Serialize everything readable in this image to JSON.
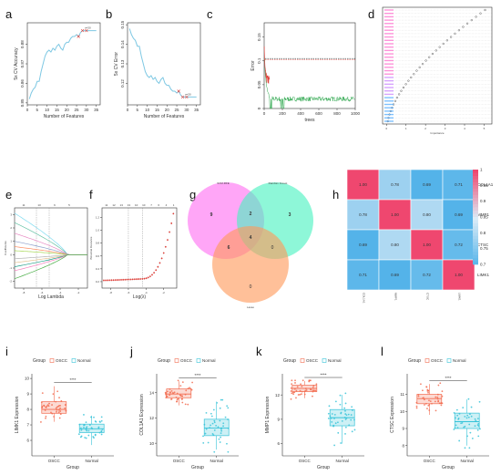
{
  "panel_letters": [
    "a",
    "b",
    "c",
    "d",
    "e",
    "f",
    "g",
    "h",
    "i",
    "j",
    "k",
    "l"
  ],
  "chart_data": [
    {
      "panel": "a",
      "type": "line",
      "xlabel": "Number of Features",
      "ylabel": "5x CV Accuracy",
      "xticks": [
        0,
        5,
        10,
        15,
        20,
        25,
        30,
        35
      ],
      "yticks": [
        0.85,
        0.86,
        0.87,
        0.88
      ],
      "xlim": [
        0,
        37
      ],
      "ylim": [
        0.849,
        0.891
      ],
      "x": [
        1,
        2,
        3,
        4,
        5,
        6,
        7,
        8,
        9,
        10,
        11,
        12,
        13,
        14,
        15,
        16,
        17,
        18,
        19,
        20,
        21,
        22,
        23,
        24,
        25,
        26,
        27,
        28,
        29,
        30,
        31,
        32,
        33,
        34,
        35
      ],
      "values": [
        0.852,
        0.855,
        0.857,
        0.858,
        0.861,
        0.861,
        0.866,
        0.87,
        0.874,
        0.876,
        0.877,
        0.876,
        0.878,
        0.877,
        0.879,
        0.88,
        0.878,
        0.877,
        0.88,
        0.881,
        0.881,
        0.883,
        0.884,
        0.884,
        0.885,
        0.884,
        0.886,
        0.887,
        0.887,
        0.887,
        0.887,
        0.887,
        0.887,
        0.887,
        0.887
      ],
      "annotation": "n=30"
    },
    {
      "panel": "b",
      "type": "line",
      "xlabel": "Number of Features",
      "ylabel": "5x CV Error",
      "xticks": [
        0,
        5,
        10,
        15,
        20,
        25,
        30,
        35
      ],
      "yticks": [
        0.12,
        0.13,
        0.14,
        0.15
      ],
      "xlim": [
        0,
        37
      ],
      "ylim": [
        0.109,
        0.151
      ],
      "x": [
        1,
        2,
        3,
        4,
        5,
        6,
        7,
        8,
        9,
        10,
        11,
        12,
        13,
        14,
        15,
        16,
        17,
        18,
        19,
        20,
        21,
        22,
        23,
        24,
        25,
        26,
        27,
        28,
        29,
        30,
        31,
        32,
        33,
        34,
        35
      ],
      "values": [
        0.148,
        0.145,
        0.143,
        0.142,
        0.139,
        0.139,
        0.134,
        0.13,
        0.126,
        0.124,
        0.123,
        0.124,
        0.122,
        0.123,
        0.121,
        0.12,
        0.122,
        0.123,
        0.12,
        0.119,
        0.119,
        0.117,
        0.116,
        0.116,
        0.115,
        0.116,
        0.114,
        0.113,
        0.113,
        0.113,
        0.113,
        0.113,
        0.113,
        0.113,
        0.113
      ],
      "annotation": "n=30"
    },
    {
      "panel": "c",
      "type": "line",
      "xlabel": "trees",
      "ylabel": "Error",
      "xticks": [
        0,
        200,
        400,
        600,
        800,
        1000
      ],
      "yticks": [
        0.0,
        0.05,
        0.1,
        0.15
      ],
      "xlim": [
        0,
        1000
      ],
      "ylim": [
        0,
        0.18
      ]
    },
    {
      "panel": "d",
      "type": "scatter",
      "xlabel": "Importance",
      "xticks": [
        0,
        1,
        2,
        3,
        4,
        5
      ]
    },
    {
      "panel": "e",
      "type": "line",
      "xlabel": "Log Lambda",
      "ylabel": "Coefficients",
      "top_ticks": [
        "11",
        "13",
        "6",
        "5"
      ],
      "xticks": [
        "-8",
        "-6",
        "-4",
        "-2"
      ],
      "yticks": [
        "-2",
        "-1",
        "0",
        "1",
        "2",
        "3"
      ]
    },
    {
      "panel": "f",
      "type": "line",
      "xlabel": "Log(λ)",
      "ylabel": "Binomial Deviance",
      "top_ticks": [
        "11",
        "12",
        "13",
        "13",
        "10",
        "10",
        "7",
        "6",
        "4",
        "1"
      ],
      "xticks": [
        "-8",
        "-6",
        "-4",
        "-2"
      ],
      "yticks": [
        "0.2",
        "0.4",
        "0.6",
        "0.8",
        "1.0",
        "1.2"
      ]
    },
    {
      "panel": "g",
      "type": "venn",
      "sets": [
        "SVM-RFE",
        "Random Forest",
        "Lasso"
      ],
      "regions": {
        "a_only": "9",
        "b_only": "3",
        "c_only": "0",
        "ab": "2",
        "ac": "6",
        "bc": "0",
        "abc": "4"
      }
    },
    {
      "panel": "h",
      "type": "heatmap",
      "row_labels": [
        "COL1A1",
        "MMP1",
        "CTSC",
        "LIMK1"
      ],
      "col_labels": [
        "COL1A1",
        "MMP1",
        "CTSC",
        "LIMK1"
      ],
      "matrix": [
        [
          1.0,
          0.78,
          0.69,
          0.71
        ],
        [
          0.78,
          1.0,
          0.8,
          0.69
        ],
        [
          0.69,
          0.8,
          1.0,
          0.72
        ],
        [
          0.71,
          0.69,
          0.72,
          1.0
        ]
      ],
      "colorbar_ticks": [
        "1",
        "0.95",
        "0.9",
        "0.85",
        "0.8",
        "0.75",
        "0.7"
      ],
      "colorbar_range": [
        0.7,
        1.0
      ]
    },
    {
      "panel": "i",
      "type": "boxplot",
      "legend_title": "Group",
      "categories": [
        "OSCC",
        "Normal"
      ],
      "xlabel": "Group",
      "ylabel": "LIMK1 Expression",
      "yticks": [
        6,
        7,
        8,
        9,
        10
      ],
      "ylim": [
        5.0,
        10.3
      ],
      "significance": "****",
      "boxes": [
        {
          "min": 7.2,
          "q1": 7.75,
          "median": 8.0,
          "q3": 8.5,
          "max": 9.5
        },
        {
          "min": 5.7,
          "q1": 6.5,
          "median": 6.75,
          "q3": 7.05,
          "max": 7.6
        }
      ]
    },
    {
      "panel": "j",
      "type": "boxplot",
      "legend_title": "Group",
      "categories": [
        "OSCC",
        "Normal"
      ],
      "xlabel": "Group",
      "ylabel": "COL1A1 Expression",
      "yticks": [
        10,
        12,
        14
      ],
      "ylim": [
        9.0,
        15.5
      ],
      "significance": "****",
      "boxes": [
        {
          "min": 13.0,
          "q1": 13.6,
          "median": 13.9,
          "q3": 14.3,
          "max": 14.9
        },
        {
          "min": 9.5,
          "q1": 10.6,
          "median": 11.2,
          "q3": 11.9,
          "max": 13.3
        }
      ]
    },
    {
      "panel": "k",
      "type": "boxplot",
      "legend_title": "Group",
      "categories": [
        "OSCC",
        "Normal"
      ],
      "xlabel": "Group",
      "ylabel": "MMP1 Expression",
      "yticks": [
        6,
        9,
        12
      ],
      "ylim": [
        4.5,
        14.6
      ],
      "significance": "****",
      "boxes": [
        {
          "min": 11.6,
          "q1": 12.4,
          "median": 12.8,
          "q3": 13.2,
          "max": 13.7
        },
        {
          "min": 6.0,
          "q1": 8.2,
          "median": 9.2,
          "q3": 10.2,
          "max": 12.0
        }
      ]
    },
    {
      "panel": "l",
      "type": "boxplot",
      "legend_title": "Group",
      "categories": [
        "OSCC",
        "Normal"
      ],
      "xlabel": "Group",
      "ylabel": "CTSC Expression",
      "yticks": [
        8,
        9,
        10,
        11
      ],
      "ylim": [
        7.4,
        12.2
      ],
      "significance": "****",
      "boxes": [
        {
          "min": 9.8,
          "q1": 10.45,
          "median": 10.75,
          "q3": 11.0,
          "max": 11.6
        },
        {
          "min": 8.0,
          "q1": 9.0,
          "median": 9.4,
          "q3": 9.9,
          "max": 10.7
        }
      ]
    }
  ],
  "colors": {
    "line_blue": "#7ec8e3",
    "point_red": "#e0403a",
    "oscc": "#f26b4f",
    "normal": "#36c3d8",
    "venn_a": "#ff6ff2",
    "venn_b": "#48f2c0",
    "venn_c": "#ff9a5a",
    "heat_high": "#ef476f",
    "heat_mid": "#dcecf7",
    "heat_low": "#54b3e9"
  }
}
